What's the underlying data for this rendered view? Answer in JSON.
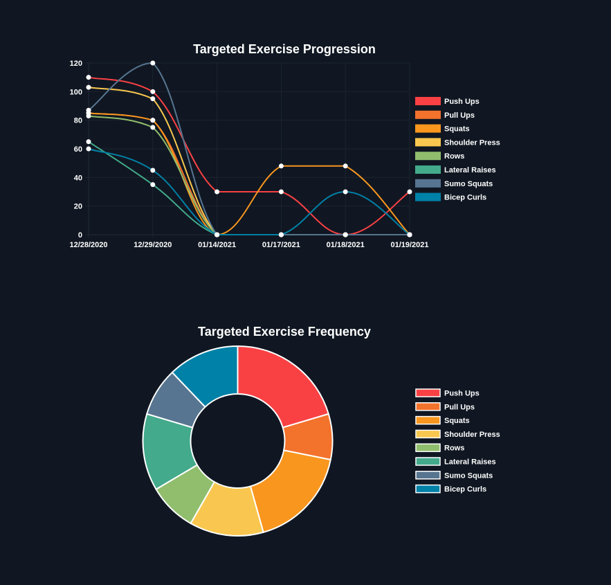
{
  "chart_data": [
    {
      "type": "line",
      "title": "Targeted Exercise Progression",
      "xlabel": "",
      "ylabel": "",
      "categories": [
        "12/28/2020",
        "12/29/2020",
        "01/14/2021",
        "01/17/2021",
        "01/18/2021",
        "01/19/2021"
      ],
      "ylim": [
        0,
        120
      ],
      "yticks": [
        0,
        20,
        40,
        60,
        80,
        100,
        120
      ],
      "grid": true,
      "legend_position": "right",
      "series": [
        {
          "name": "Push Ups",
          "color": "#f94144",
          "values": [
            110,
            100,
            30,
            30,
            0,
            30
          ]
        },
        {
          "name": "Pull Ups",
          "color": "#f3722c",
          "values": [
            85,
            80,
            0,
            0,
            0,
            0
          ]
        },
        {
          "name": "Squats",
          "color": "#f8961e",
          "values": [
            85,
            80,
            0,
            48,
            48,
            0
          ]
        },
        {
          "name": "Shoulder Press",
          "color": "#f9c74f",
          "values": [
            103,
            95,
            0,
            0,
            0,
            0
          ]
        },
        {
          "name": "Rows",
          "color": "#90be6d",
          "values": [
            83,
            75,
            0,
            0,
            0,
            0
          ]
        },
        {
          "name": "Lateral Raises",
          "color": "#43aa8b",
          "values": [
            65,
            35,
            0,
            0,
            0,
            0
          ]
        },
        {
          "name": "Sumo Squats",
          "color": "#577590",
          "values": [
            87,
            120,
            0,
            0,
            0,
            0
          ]
        },
        {
          "name": "Bicep Curls",
          "color": "#0081a7",
          "values": [
            60,
            45,
            0,
            0,
            30,
            0
          ]
        }
      ]
    },
    {
      "type": "pie",
      "subtype": "doughnut",
      "title": "Targeted Exercise Frequency",
      "legend_position": "right",
      "labels": [
        "Push Ups",
        "Pull Ups",
        "Squats",
        "Shoulder Press",
        "Rows",
        "Lateral Raises",
        "Sumo Squats",
        "Bicep Curls"
      ],
      "values": [
        21.0,
        8.0,
        18.0,
        13.0,
        8.5,
        13.5,
        8.5,
        12.5
      ],
      "colors": [
        "#f94144",
        "#f3722c",
        "#f8961e",
        "#f9c74f",
        "#90be6d",
        "#43aa8b",
        "#577590",
        "#0081a7"
      ]
    }
  ]
}
